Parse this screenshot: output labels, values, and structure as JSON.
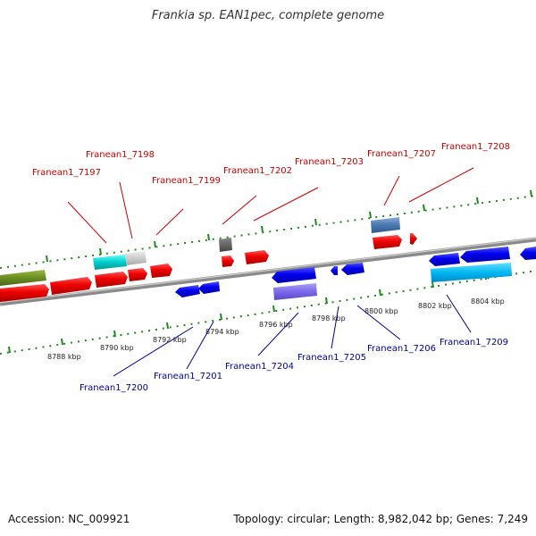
{
  "title": "Frankia sp. EAN1pec, complete genome",
  "footer": {
    "accession": "Accession: NC_009921",
    "summary": "Topology: circular; Length: 8,982,042 bp; Genes: 7,249"
  },
  "colors": {
    "forward_gene": "#e00000",
    "reverse_gene": "#0000dd",
    "backbone": "#888888",
    "tick": "#228822",
    "label_forward": "#cc0000",
    "label_reverse": "#000099"
  },
  "kbp_labels": [
    "8788 kbp",
    "8790 kbp",
    "8792 kbp",
    "8794 kbp",
    "8796 kbp",
    "8798 kbp",
    "8800 kbp",
    "8802 kbp",
    "8804 kbp"
  ],
  "forward_labels": [
    "Franean1_7197",
    "Franean1_7198",
    "Franean1_7199",
    "Franean1_7202",
    "Franean1_7203",
    "Franean1_7207",
    "Franean1_7208"
  ],
  "reverse_labels": [
    "Franean1_7200",
    "Franean1_7201",
    "Franean1_7204",
    "Franean1_7205",
    "Franean1_7206",
    "Franean1_7209"
  ]
}
